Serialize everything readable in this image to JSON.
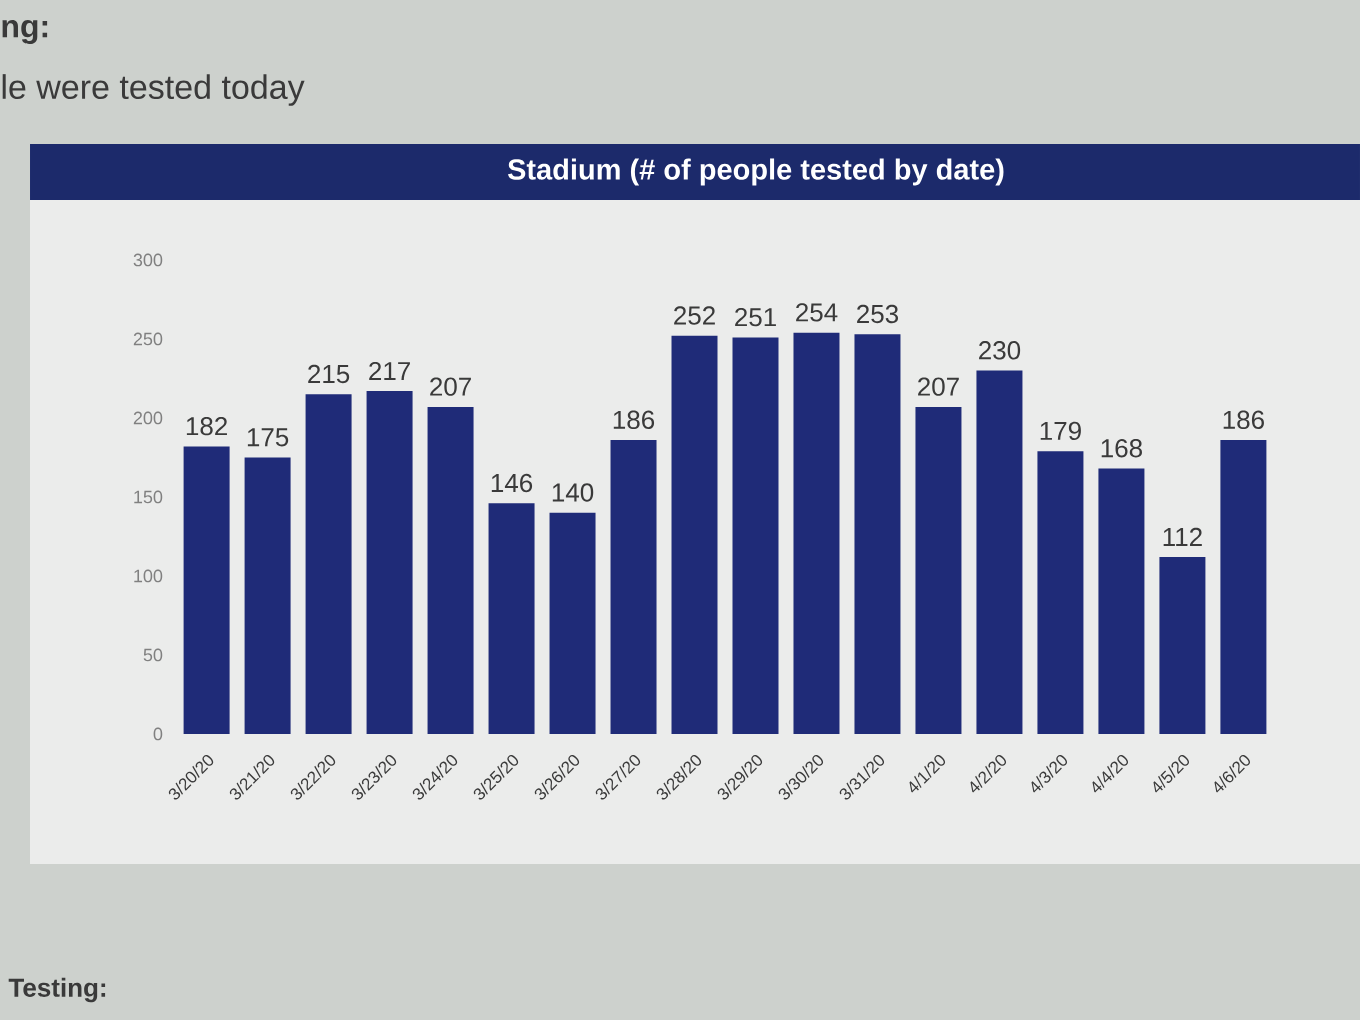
{
  "chart_data": {
    "type": "bar",
    "title": "Stadium (# of people tested by date)",
    "annotations": [
      "ng:",
      "le were tested today",
      "Testing:"
    ],
    "categories": [
      "3/20/20",
      "3/21/20",
      "3/22/20",
      "3/23/20",
      "3/24/20",
      "3/25/20",
      "3/26/20",
      "3/27/20",
      "3/28/20",
      "3/29/20",
      "3/30/20",
      "3/31/20",
      "4/1/20",
      "4/2/20",
      "4/3/20",
      "4/4/20",
      "4/5/20",
      "4/6/20"
    ],
    "values": [
      182,
      175,
      215,
      217,
      207,
      146,
      140,
      186,
      252,
      251,
      254,
      253,
      207,
      230,
      179,
      168,
      112,
      186
    ],
    "color": "#1f2b78",
    "ylim": [
      0,
      300
    ],
    "yticks": [
      0,
      50,
      100,
      150,
      200,
      250,
      300
    ],
    "data_labels": true
  }
}
